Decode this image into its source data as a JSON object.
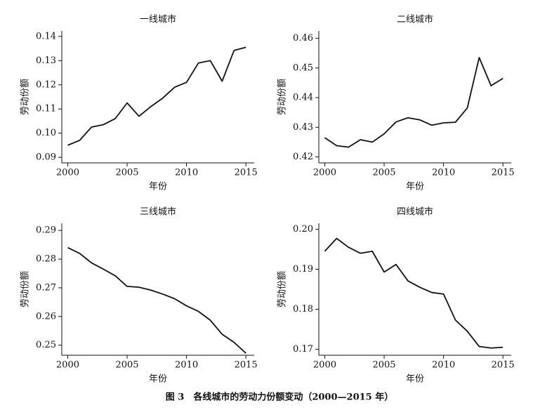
{
  "chart_data": [
    {
      "type": "line",
      "title": "一线城市",
      "x_label": "年份",
      "y_label": "劳动份额",
      "x": [
        2000,
        2001,
        2002,
        2003,
        2004,
        2005,
        2006,
        2007,
        2008,
        2009,
        2010,
        2011,
        2012,
        2013,
        2014,
        2015
      ],
      "series": [
        {
          "color": "#111111",
          "values": [
            0.095,
            0.097,
            0.1025,
            0.1035,
            0.106,
            0.1125,
            0.107,
            0.111,
            0.1145,
            0.119,
            0.121,
            0.129,
            0.13,
            0.1215,
            0.1342,
            0.1355
          ]
        }
      ],
      "xlim": [
        1999.5,
        2015.7
      ],
      "xticks": [
        2000,
        2005,
        2010,
        2015
      ],
      "ylim": [
        0.0877,
        0.1423
      ],
      "yticks": [
        0.09,
        {
          "value": 0.1,
          "label": "0.10"
        },
        0.11,
        0.12,
        0.13,
        0.14
      ]
    },
    {
      "type": "line",
      "title": "二线城市",
      "x_label": "年份",
      "y_label": "劳动份额",
      "x": [
        2000,
        2001,
        2002,
        2003,
        2004,
        2005,
        2006,
        2007,
        2008,
        2009,
        2010,
        2011,
        2012,
        2013,
        2014,
        2015
      ],
      "series": [
        {
          "color": "#111111",
          "values": [
            0.4265,
            0.4238,
            0.4233,
            0.4258,
            0.425,
            0.4278,
            0.4318,
            0.4332,
            0.4325,
            0.4307,
            0.4315,
            0.4317,
            0.4365,
            0.4535,
            0.444,
            0.4465
          ]
        }
      ],
      "xlim": [
        1999.5,
        2015.7
      ],
      "xticks": [
        2000,
        2005,
        2010,
        2015
      ],
      "ylim": [
        0.418,
        0.4625
      ],
      "yticks": [
        0.42,
        0.43,
        0.44,
        0.45,
        0.46
      ]
    },
    {
      "type": "line",
      "title": "三线城市",
      "x_label": "年份",
      "y_label": "劳动份额",
      "x": [
        2000,
        2001,
        2002,
        2003,
        2004,
        2005,
        2006,
        2007,
        2008,
        2009,
        2010,
        2011,
        2012,
        2013,
        2014,
        2015
      ],
      "series": [
        {
          "color": "#111111",
          "values": [
            0.284,
            0.282,
            0.2787,
            0.2765,
            0.2742,
            0.2705,
            0.2702,
            0.2692,
            0.2678,
            0.2662,
            0.2637,
            0.2618,
            0.2587,
            0.2538,
            0.251,
            0.2472
          ]
        }
      ],
      "xlim": [
        1999.5,
        2015.7
      ],
      "xticks": [
        2000,
        2005,
        2010,
        2015
      ],
      "ylim": [
        0.2465,
        0.2925
      ],
      "yticks": [
        0.25,
        0.26,
        0.27,
        0.28,
        0.29
      ]
    },
    {
      "type": "line",
      "title": "四线城市",
      "x_label": "年份",
      "y_label": "劳动份额",
      "x": [
        2000,
        2001,
        2002,
        2003,
        2004,
        2005,
        2006,
        2007,
        2008,
        2009,
        2010,
        2011,
        2012,
        2013,
        2014,
        2015
      ],
      "series": [
        {
          "color": "#111111",
          "values": [
            0.1945,
            0.1977,
            0.1955,
            0.194,
            0.1945,
            0.1893,
            0.1912,
            0.1871,
            0.1855,
            0.1842,
            0.1838,
            0.1773,
            0.1745,
            0.1707,
            0.1703,
            0.1705
          ]
        }
      ],
      "xlim": [
        1999.5,
        2015.7
      ],
      "xticks": [
        2000,
        2005,
        2010,
        2015
      ],
      "ylim": [
        0.1685,
        0.2015
      ],
      "yticks": [
        0.17,
        0.18,
        0.19,
        {
          "value": 0.2,
          "label": "0.20"
        }
      ]
    }
  ],
  "caption": "图 3　各线城市的劳动力份额变动（2000—2015 年）"
}
